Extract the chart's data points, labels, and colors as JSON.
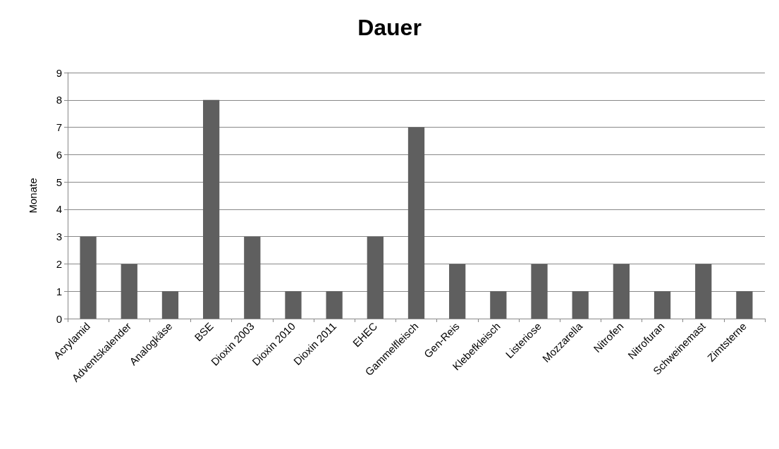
{
  "chart_data": {
    "type": "bar",
    "title": "Dauer",
    "ylabel": "Monate",
    "categories": [
      "Acrylamid",
      "Adventskalender",
      "Analogkäse",
      "BSE",
      "Dioxin 2003",
      "Dioxin 2010",
      "Dioxin 2011",
      "EHEC",
      "Gammelfleisch",
      "Gen-Reis",
      "Klebefkleisch",
      "Listeriose",
      "Mozzarella",
      "Nitrofen",
      "Nitrofuran",
      "Schweinemast",
      "Zimtsterne"
    ],
    "values": [
      3,
      2,
      1,
      8,
      3,
      1,
      1,
      3,
      7,
      2,
      1,
      2,
      1,
      2,
      1,
      2,
      1
    ],
    "color": "#5f5f5f",
    "ylim": [
      0,
      9
    ],
    "yticks": [
      0,
      1,
      2,
      3,
      4,
      5,
      6,
      7,
      8,
      9
    ],
    "grid": "y"
  }
}
